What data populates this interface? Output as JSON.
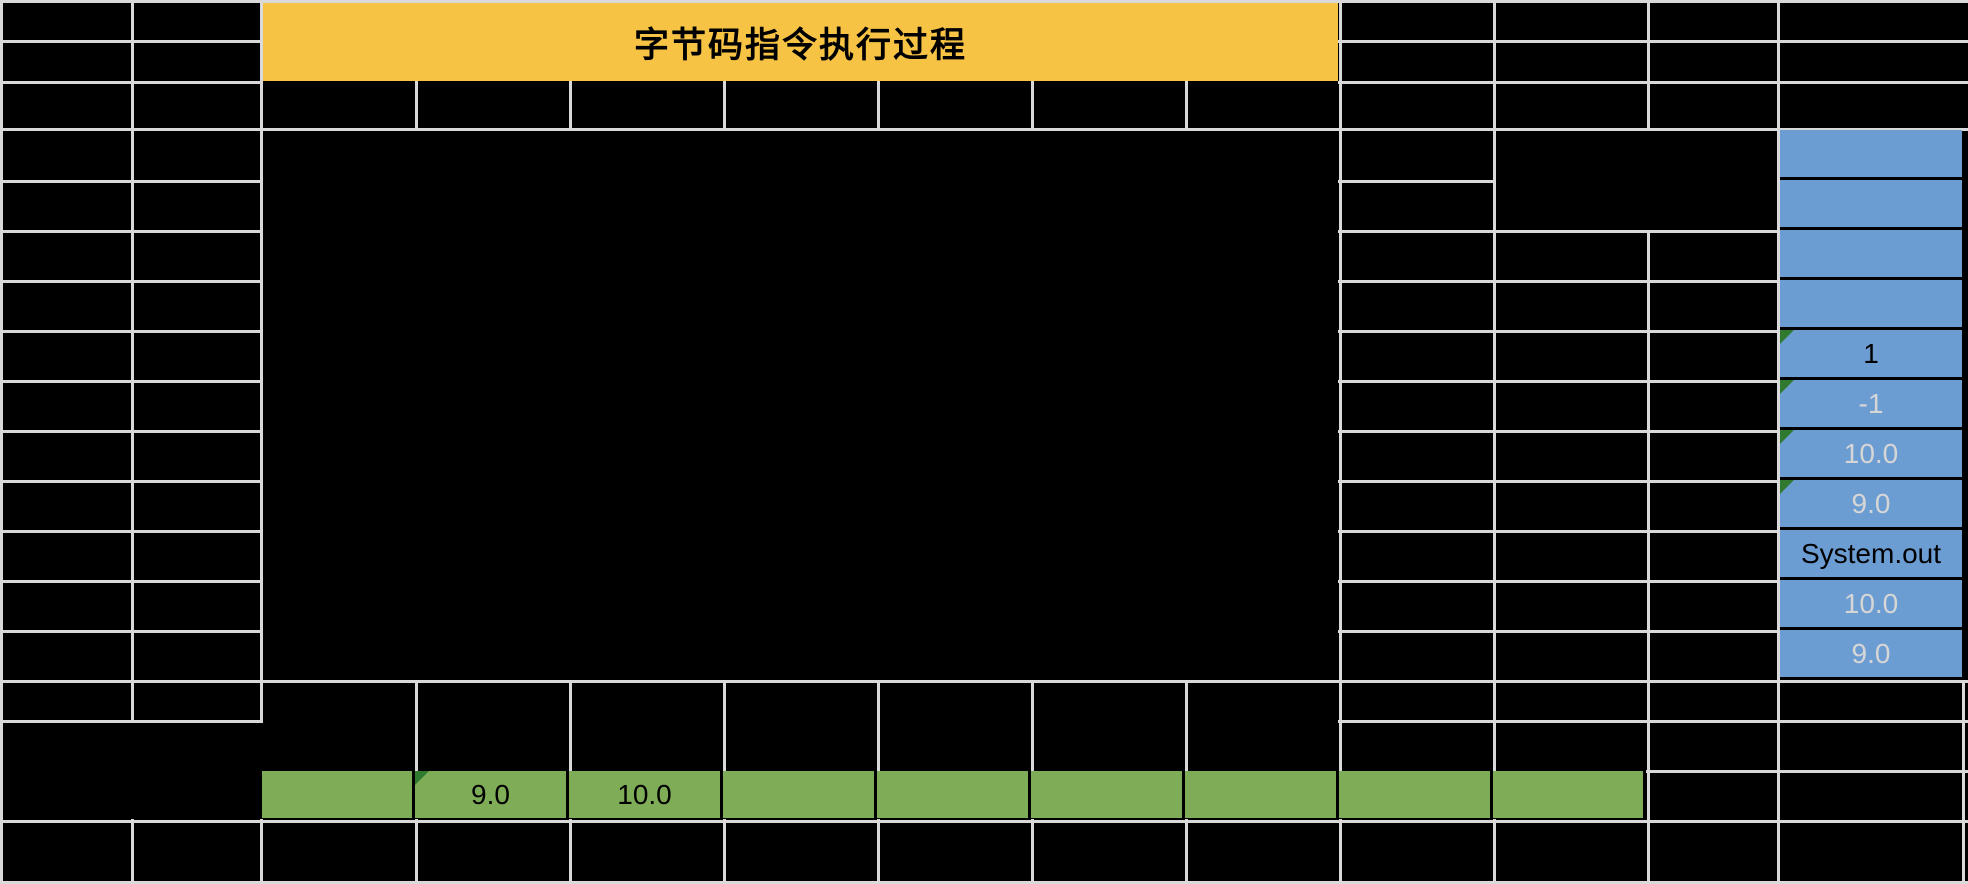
{
  "sheet": {
    "title_cell": {
      "text": "字节码指令执行过程"
    }
  },
  "colors": {
    "background": "#000000",
    "gridline": "#d9d9d9",
    "title_fill": "#f6c344",
    "stack_fill": "#6b9cd2",
    "row_fill": "#7fac57",
    "indicator_green": "#2f7a2f",
    "light_text": "#d6d6d6",
    "dark_text": "#000000"
  },
  "stack_column": {
    "cells": [
      {
        "value": "",
        "indicator": false,
        "dark_text": false
      },
      {
        "value": "",
        "indicator": false,
        "dark_text": false
      },
      {
        "value": "",
        "indicator": false,
        "dark_text": false
      },
      {
        "value": "",
        "indicator": false,
        "dark_text": false
      },
      {
        "value": "1",
        "indicator": true,
        "dark_text": true
      },
      {
        "value": "-1",
        "indicator": true,
        "dark_text": false
      },
      {
        "value": "10.0",
        "indicator": true,
        "dark_text": false
      },
      {
        "value": "9.0",
        "indicator": true,
        "dark_text": false
      },
      {
        "value": "System.out",
        "indicator": false,
        "dark_text": true
      },
      {
        "value": "10.0",
        "indicator": false,
        "dark_text": false
      },
      {
        "value": "9.0",
        "indicator": false,
        "dark_text": false
      }
    ]
  },
  "bottom_row": {
    "cells": [
      {
        "value": "",
        "indicator": false
      },
      {
        "value": "9.0",
        "indicator": true
      },
      {
        "value": "10.0",
        "indicator": false
      },
      {
        "value": "",
        "indicator": false
      },
      {
        "value": "",
        "indicator": false
      },
      {
        "value": "",
        "indicator": false
      },
      {
        "value": "",
        "indicator": false
      },
      {
        "value": "",
        "indicator": false
      },
      {
        "value": "",
        "indicator": false
      }
    ]
  }
}
